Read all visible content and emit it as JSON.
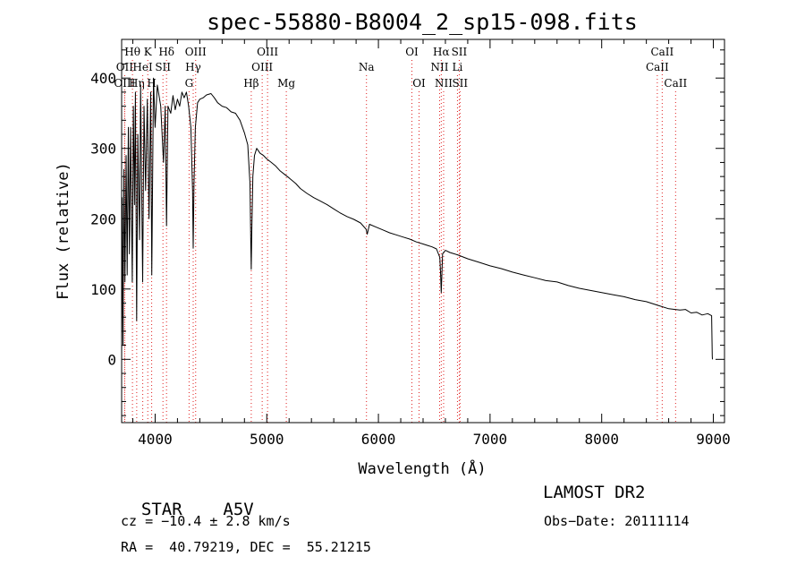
{
  "chart_data": {
    "type": "line",
    "title": "spec-55880-B8004_2_sp15-098.fits",
    "xlabel": "Wavelength (Å)",
    "ylabel": "Flux (relative)",
    "xlim": [
      3700,
      9100
    ],
    "ylim": [
      -90,
      455
    ],
    "xticks": [
      4000,
      5000,
      6000,
      7000,
      8000,
      9000
    ],
    "yticks": [
      0,
      100,
      200,
      300,
      400
    ],
    "grid": false,
    "series": [
      {
        "name": "",
        "color": "#000000",
        "points": [
          [
            3700,
            0
          ],
          [
            3705,
            230
          ],
          [
            3712,
            20
          ],
          [
            3720,
            270
          ],
          [
            3730,
            110
          ],
          [
            3740,
            290
          ],
          [
            3750,
            120
          ],
          [
            3760,
            330
          ],
          [
            3770,
            150
          ],
          [
            3780,
            330
          ],
          [
            3795,
            110
          ],
          [
            3805,
            360
          ],
          [
            3815,
            220
          ],
          [
            3823,
            380
          ],
          [
            3835,
            55
          ],
          [
            3845,
            320
          ],
          [
            3860,
            170
          ],
          [
            3870,
            390
          ],
          [
            3888,
            110
          ],
          [
            3900,
            360
          ],
          [
            3915,
            240
          ],
          [
            3930,
            370
          ],
          [
            3945,
            200
          ],
          [
            3960,
            380
          ],
          [
            3970,
            120
          ],
          [
            3985,
            400
          ],
          [
            4000,
            330
          ],
          [
            4020,
            390
          ],
          [
            4050,
            360
          ],
          [
            4075,
            280
          ],
          [
            4090,
            360
          ],
          [
            4102,
            190
          ],
          [
            4115,
            360
          ],
          [
            4140,
            350
          ],
          [
            4160,
            375
          ],
          [
            4180,
            355
          ],
          [
            4200,
            370
          ],
          [
            4220,
            360
          ],
          [
            4240,
            380
          ],
          [
            4260,
            372
          ],
          [
            4280,
            380
          ],
          [
            4300,
            360
          ],
          [
            4320,
            330
          ],
          [
            4335,
            240
          ],
          [
            4341,
            158
          ],
          [
            4348,
            250
          ],
          [
            4360,
            330
          ],
          [
            4380,
            365
          ],
          [
            4400,
            370
          ],
          [
            4430,
            372
          ],
          [
            4460,
            376
          ],
          [
            4500,
            378
          ],
          [
            4530,
            372
          ],
          [
            4560,
            365
          ],
          [
            4600,
            360
          ],
          [
            4640,
            358
          ],
          [
            4680,
            352
          ],
          [
            4720,
            350
          ],
          [
            4760,
            340
          ],
          [
            4800,
            322
          ],
          [
            4830,
            305
          ],
          [
            4850,
            250
          ],
          [
            4857,
            165
          ],
          [
            4861,
            128
          ],
          [
            4866,
            180
          ],
          [
            4875,
            260
          ],
          [
            4890,
            290
          ],
          [
            4910,
            300
          ],
          [
            4940,
            293
          ],
          [
            4970,
            290
          ],
          [
            5000,
            285
          ],
          [
            5040,
            280
          ],
          [
            5080,
            275
          ],
          [
            5120,
            268
          ],
          [
            5160,
            263
          ],
          [
            5200,
            258
          ],
          [
            5260,
            250
          ],
          [
            5300,
            243
          ],
          [
            5360,
            236
          ],
          [
            5420,
            230
          ],
          [
            5480,
            225
          ],
          [
            5540,
            220
          ],
          [
            5600,
            214
          ],
          [
            5660,
            208
          ],
          [
            5720,
            203
          ],
          [
            5780,
            199
          ],
          [
            5840,
            194
          ],
          [
            5890,
            185
          ],
          [
            5900,
            178
          ],
          [
            5920,
            192
          ],
          [
            5980,
            188
          ],
          [
            6040,
            184
          ],
          [
            6100,
            180
          ],
          [
            6160,
            177
          ],
          [
            6220,
            174
          ],
          [
            6280,
            171
          ],
          [
            6340,
            167
          ],
          [
            6400,
            164
          ],
          [
            6440,
            162
          ],
          [
            6480,
            160
          ],
          [
            6520,
            157
          ],
          [
            6550,
            145
          ],
          [
            6558,
            118
          ],
          [
            6563,
            95
          ],
          [
            6568,
            120
          ],
          [
            6575,
            150
          ],
          [
            6600,
            155
          ],
          [
            6640,
            152
          ],
          [
            6680,
            150
          ],
          [
            6720,
            148
          ],
          [
            6800,
            143
          ],
          [
            6900,
            138
          ],
          [
            7000,
            133
          ],
          [
            7100,
            129
          ],
          [
            7200,
            124
          ],
          [
            7300,
            120
          ],
          [
            7400,
            116
          ],
          [
            7500,
            112
          ],
          [
            7600,
            110
          ],
          [
            7700,
            105
          ],
          [
            7800,
            101
          ],
          [
            7900,
            98
          ],
          [
            8000,
            95
          ],
          [
            8100,
            92
          ],
          [
            8200,
            89
          ],
          [
            8300,
            85
          ],
          [
            8400,
            82
          ],
          [
            8500,
            77
          ],
          [
            8600,
            72
          ],
          [
            8700,
            70
          ],
          [
            8750,
            71
          ],
          [
            8800,
            66
          ],
          [
            8850,
            67
          ],
          [
            8900,
            63
          ],
          [
            8950,
            65
          ],
          [
            8985,
            62
          ],
          [
            8990,
            5
          ],
          [
            8992,
            0
          ]
        ]
      }
    ],
    "line_markers": [
      {
        "label": "Hθ",
        "x": 3797,
        "row": 1
      },
      {
        "label": "OII",
        "x": 3727,
        "row": 2
      },
      {
        "label": "OIII",
        "x": 3727,
        "row": 3
      },
      {
        "label": "Hη",
        "x": 3835,
        "row": 3
      },
      {
        "label": "K",
        "x": 3934,
        "row": 1
      },
      {
        "label": "HeI",
        "x": 3889,
        "row": 2
      },
      {
        "label": "H",
        "x": 3969,
        "row": 3
      },
      {
        "label": "SII",
        "x": 4070,
        "row": 2
      },
      {
        "label": "Hδ",
        "x": 4102,
        "row": 1
      },
      {
        "label": "OIII",
        "x": 4363,
        "row": 1
      },
      {
        "label": "Hγ",
        "x": 4341,
        "row": 2
      },
      {
        "label": "G",
        "x": 4304,
        "row": 3
      },
      {
        "label": "Hβ",
        "x": 4861,
        "row": 3
      },
      {
        "label": "OIII",
        "x": 5007,
        "row": 1
      },
      {
        "label": "OIII",
        "x": 4959,
        "row": 2
      },
      {
        "label": "Mg",
        "x": 5175,
        "row": 3
      },
      {
        "label": "Na",
        "x": 5893,
        "row": 2
      },
      {
        "label": "OI",
        "x": 6300,
        "row": 1
      },
      {
        "label": "OI",
        "x": 6364,
        "row": 3
      },
      {
        "label": "Hα",
        "x": 6563,
        "row": 1
      },
      {
        "label": "SII",
        "x": 6724,
        "row": 1
      },
      {
        "label": "NII",
        "x": 6548,
        "row": 2
      },
      {
        "label": "Li",
        "x": 6708,
        "row": 2
      },
      {
        "label": "NII",
        "x": 6584,
        "row": 3
      },
      {
        "label": "SII",
        "x": 6731,
        "row": 3
      },
      {
        "label": "CaII",
        "x": 8542,
        "row": 1
      },
      {
        "label": "CaII",
        "x": 8498,
        "row": 2
      },
      {
        "label": "CaII",
        "x": 8662,
        "row": 3
      }
    ],
    "marker_line_color": "#e02020"
  },
  "info": {
    "class_label": "STAR",
    "subclass": "A5V",
    "survey": "LAMOST DR2",
    "cz_text": "cz = −10.4 ± 2.8 km/s",
    "obs_date": "Obs−Date: 20111114",
    "coords": "RA =  40.79219, DEC =  55.21215"
  }
}
